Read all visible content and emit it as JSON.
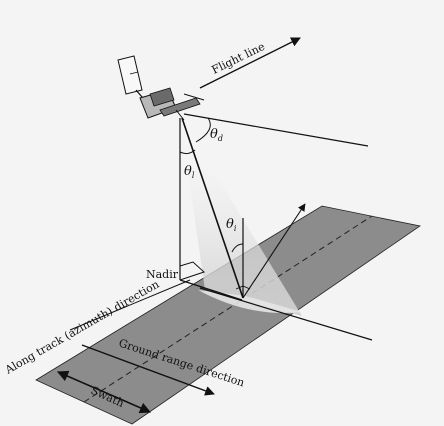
{
  "diagram": {
    "labels": {
      "flight_line": "Flight line",
      "nadir": "Nadir",
      "along_track": "Along track (azimuth) direction",
      "ground_range": "Ground range direction",
      "swath": "Swath"
    },
    "angles": {
      "depression": {
        "symbol": "θ",
        "subscript": "d"
      },
      "look": {
        "symbol": "θ",
        "subscript": "l"
      },
      "incidence": {
        "symbol": "θ",
        "subscript": "i"
      }
    },
    "colors": {
      "background": "#f4f4f4",
      "ground_strip": "#8c8c8c",
      "beam": "#d9d9d9",
      "line": "#111111"
    }
  }
}
